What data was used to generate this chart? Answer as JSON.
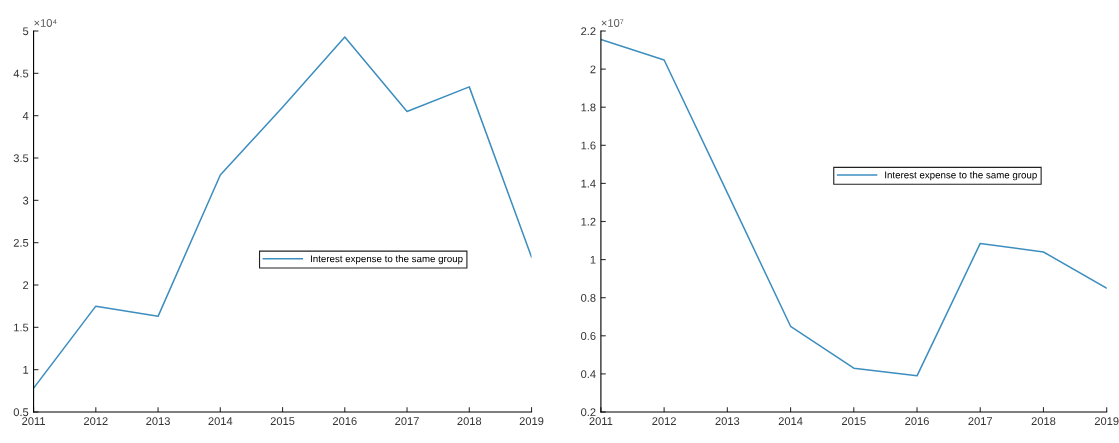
{
  "chart_data": [
    {
      "type": "line",
      "categories": [
        "2011",
        "2012",
        "2013",
        "2014",
        "2015",
        "2016",
        "2017",
        "2018",
        "2019"
      ],
      "series": [
        {
          "name": "Interest expense to the same group",
          "color": "#3d8ebf",
          "values": [
            0.78,
            1.75,
            1.63,
            3.3,
            4.1,
            4.93,
            4.05,
            4.34,
            2.33
          ]
        }
      ],
      "ylim": [
        0.5,
        5
      ],
      "yticks": [
        0.5,
        1,
        1.5,
        2,
        2.5,
        3,
        3.5,
        4,
        4.5,
        5
      ],
      "annotations": [
        "×10⁴"
      ],
      "legend": "center right",
      "grid": false
    },
    {
      "type": "line",
      "categories": [
        "2011",
        "2012",
        "2013",
        "2014",
        "2015",
        "2016",
        "2017",
        "2018",
        "2019"
      ],
      "series": [
        {
          "name": "Interest expense to the same group",
          "color": "#3d8ebf",
          "values": [
            2.155,
            2.048,
            1.35,
            0.65,
            0.43,
            0.39,
            1.085,
            1.04,
            0.85
          ]
        }
      ],
      "ylim": [
        0.2,
        2.2
      ],
      "yticks": [
        0.2,
        0.4,
        0.6,
        0.8,
        1,
        1.2,
        1.4,
        1.6,
        1.8,
        2,
        2.2
      ],
      "annotations": [
        "×10⁷"
      ],
      "legend": "center right",
      "grid": false
    }
  ]
}
